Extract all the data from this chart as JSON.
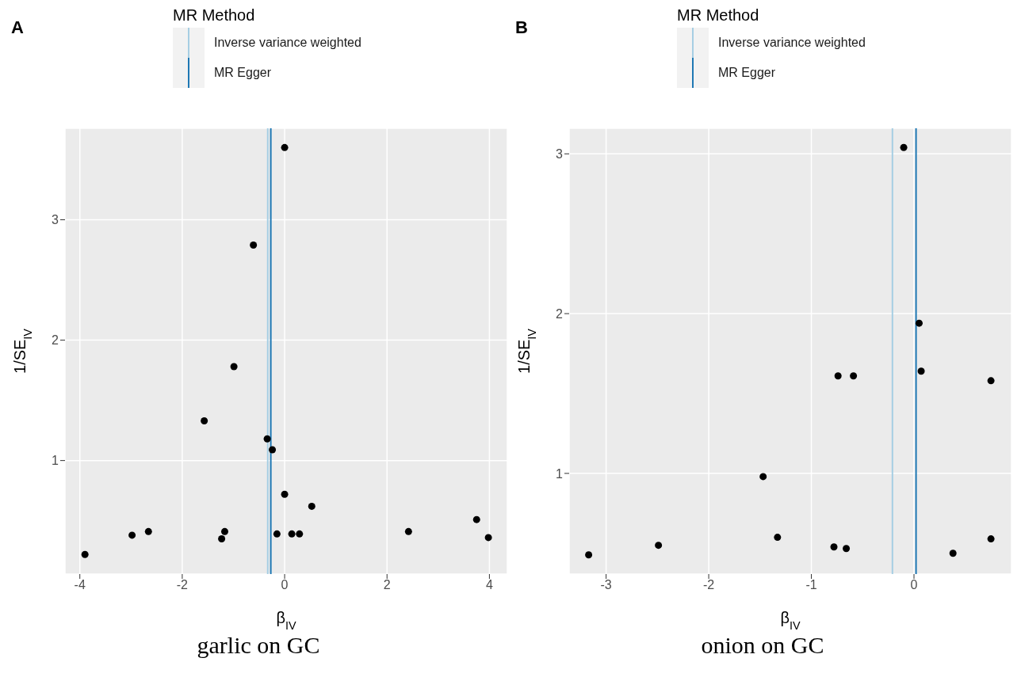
{
  "chart_data": [
    {
      "type": "scatter",
      "title": "A",
      "annotations": [
        "garlic on GC"
      ],
      "xlabel": "β$_{IV}$",
      "ylabel": "1/SE$_{IV}$",
      "legend_title": "MR Method",
      "legend": "top",
      "grid": true,
      "marker": "circle",
      "xlim": [
        -4.29,
        4.35
      ],
      "xticks": [
        -4,
        -2,
        0,
        2,
        4
      ],
      "ylim": [
        0.057,
        3.76
      ],
      "yticks": [
        1,
        2,
        3
      ],
      "series": [
        {
          "color": "#000000",
          "x": [
            0.0,
            -0.61,
            -0.99,
            -1.57,
            -0.34,
            -0.24,
            0.0,
            0.53,
            3.75,
            3.98,
            2.42,
            0.29,
            0.14,
            -0.15,
            -1.17,
            -1.23,
            -2.66,
            -2.98,
            -3.9
          ],
          "values": [
            3.6,
            2.79,
            1.78,
            1.33,
            1.18,
            1.09,
            0.72,
            0.62,
            0.51,
            0.36,
            0.41,
            0.39,
            0.39,
            0.39,
            0.41,
            0.35,
            0.41,
            0.38,
            0.22
          ]
        }
      ],
      "ref_lines": [
        {
          "axis": "x",
          "value": -0.33,
          "label": "Inverse variance weighted",
          "color": "#a6cee3"
        },
        {
          "axis": "x",
          "value": -0.27,
          "label": "MR Egger",
          "color": "#1f78b4"
        }
      ]
    },
    {
      "type": "scatter",
      "title": "B",
      "annotations": [
        "onion on GC"
      ],
      "xlabel": "β$_{IV}$",
      "ylabel": "1/SE$_{IV}$",
      "legend_title": "MR Method",
      "legend": "top",
      "grid": true,
      "marker": "circle",
      "xlim": [
        -3.36,
        0.95
      ],
      "xticks": [
        -3,
        -2,
        -1,
        0
      ],
      "ylim": [
        0.37,
        3.16
      ],
      "yticks": [
        1,
        2,
        3
      ],
      "series": [
        {
          "color": "#000000",
          "x": [
            -0.1,
            0.05,
            0.07,
            -0.74,
            -0.59,
            0.75,
            -1.47,
            -1.33,
            -3.17,
            -2.49,
            -0.78,
            -0.66,
            0.38,
            0.75
          ],
          "values": [
            3.04,
            1.94,
            1.64,
            1.61,
            1.61,
            1.58,
            0.98,
            0.6,
            0.49,
            0.55,
            0.54,
            0.53,
            0.5,
            0.59
          ]
        }
      ],
      "ref_lines": [
        {
          "axis": "x",
          "value": -0.21,
          "label": "Inverse variance weighted",
          "color": "#a6cee3"
        },
        {
          "axis": "x",
          "value": 0.02,
          "label": "MR Egger",
          "color": "#1f78b4"
        }
      ]
    }
  ]
}
